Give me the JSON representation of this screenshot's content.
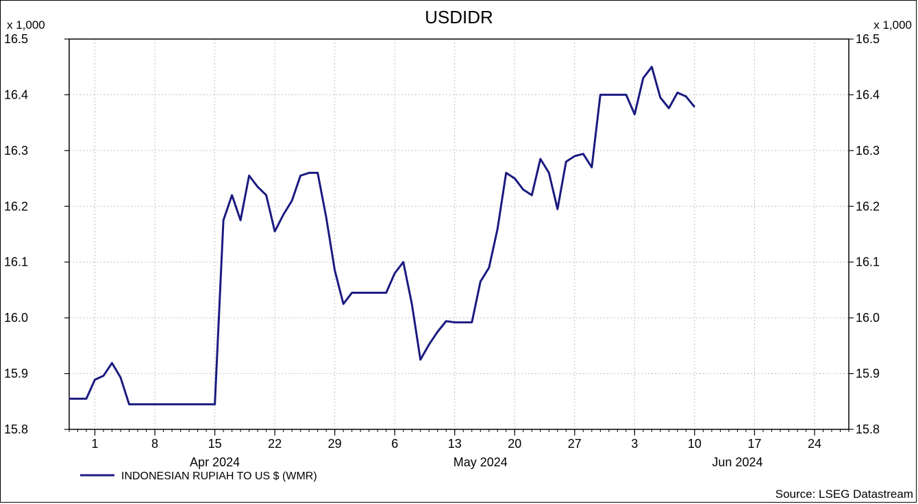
{
  "chart_data": {
    "type": "line",
    "title": "USDIDR",
    "left_unit": "x 1,000",
    "right_unit": "x 1,000",
    "ylim": [
      15.8,
      16.5
    ],
    "y_ticks": [
      "15.8",
      "15.9",
      "16.0",
      "16.1",
      "16.2",
      "16.3",
      "16.4",
      "16.5"
    ],
    "x_range": [
      "2024-03-29",
      "2024-06-28"
    ],
    "day_ticks": [
      {
        "date": "2024-04-01",
        "label": "1"
      },
      {
        "date": "2024-04-08",
        "label": "8"
      },
      {
        "date": "2024-04-15",
        "label": "15"
      },
      {
        "date": "2024-04-22",
        "label": "22"
      },
      {
        "date": "2024-04-29",
        "label": "29"
      },
      {
        "date": "2024-05-06",
        "label": "6"
      },
      {
        "date": "2024-05-13",
        "label": "13"
      },
      {
        "date": "2024-05-20",
        "label": "20"
      },
      {
        "date": "2024-05-27",
        "label": "27"
      },
      {
        "date": "2024-06-03",
        "label": "3"
      },
      {
        "date": "2024-06-10",
        "label": "10"
      },
      {
        "date": "2024-06-17",
        "label": "17"
      },
      {
        "date": "2024-06-24",
        "label": "24"
      }
    ],
    "month_labels": [
      {
        "date": "2024-04-15",
        "label": "Apr 2024"
      },
      {
        "date": "2024-05-16",
        "label": "May 2024"
      },
      {
        "date": "2024-06-15",
        "label": "Jun 2024"
      }
    ],
    "grid": true,
    "legend_position": "bottom-left",
    "source": "Source: LSEG Datastream",
    "series": [
      {
        "name": "INDONESIAN RUPIAH TO US $ (WMR)",
        "color": "#1a1a80",
        "points": [
          [
            "2024-03-29",
            15.855
          ],
          [
            "2024-03-31",
            15.855
          ],
          [
            "2024-04-01",
            15.889
          ],
          [
            "2024-04-02",
            15.896
          ],
          [
            "2024-04-03",
            15.919
          ],
          [
            "2024-04-04",
            15.893
          ],
          [
            "2024-04-05",
            15.845
          ],
          [
            "2024-04-07",
            15.845
          ],
          [
            "2024-04-15",
            15.845
          ],
          [
            "2024-04-16",
            16.175
          ],
          [
            "2024-04-17",
            16.22
          ],
          [
            "2024-04-18",
            16.175
          ],
          [
            "2024-04-19",
            16.255
          ],
          [
            "2024-04-20",
            16.235
          ],
          [
            "2024-04-21",
            16.22
          ],
          [
            "2024-04-22",
            16.155
          ],
          [
            "2024-04-23",
            16.185
          ],
          [
            "2024-04-24",
            16.21
          ],
          [
            "2024-04-25",
            16.255
          ],
          [
            "2024-04-26",
            16.26
          ],
          [
            "2024-04-27",
            16.26
          ],
          [
            "2024-04-28",
            16.18
          ],
          [
            "2024-04-29",
            16.085
          ],
          [
            "2024-04-30",
            16.025
          ],
          [
            "2024-05-01",
            16.045
          ],
          [
            "2024-05-05",
            16.045
          ],
          [
            "2024-05-06",
            16.08
          ],
          [
            "2024-05-07",
            16.1
          ],
          [
            "2024-05-08",
            16.025
          ],
          [
            "2024-05-09",
            15.925
          ],
          [
            "2024-05-10",
            15.952
          ],
          [
            "2024-05-11",
            15.975
          ],
          [
            "2024-05-12",
            15.994
          ],
          [
            "2024-05-13",
            15.992
          ],
          [
            "2024-05-15",
            15.992
          ],
          [
            "2024-05-16",
            16.065
          ],
          [
            "2024-05-17",
            16.09
          ],
          [
            "2024-05-18",
            16.16
          ],
          [
            "2024-05-19",
            16.26
          ],
          [
            "2024-05-20",
            16.25
          ],
          [
            "2024-05-21",
            16.23
          ],
          [
            "2024-05-22",
            16.22
          ],
          [
            "2024-05-23",
            16.285
          ],
          [
            "2024-05-24",
            16.26
          ],
          [
            "2024-05-25",
            16.195
          ],
          [
            "2024-05-26",
            16.28
          ],
          [
            "2024-05-27",
            16.29
          ],
          [
            "2024-05-28",
            16.294
          ],
          [
            "2024-05-29",
            16.27
          ],
          [
            "2024-05-30",
            16.4
          ],
          [
            "2024-06-02",
            16.4
          ],
          [
            "2024-06-03",
            16.365
          ],
          [
            "2024-06-04",
            16.43
          ],
          [
            "2024-06-05",
            16.45
          ],
          [
            "2024-06-06",
            16.395
          ],
          [
            "2024-06-07",
            16.376
          ],
          [
            "2024-06-08",
            16.404
          ],
          [
            "2024-06-09",
            16.397
          ],
          [
            "2024-06-10",
            16.378
          ]
        ]
      }
    ]
  }
}
